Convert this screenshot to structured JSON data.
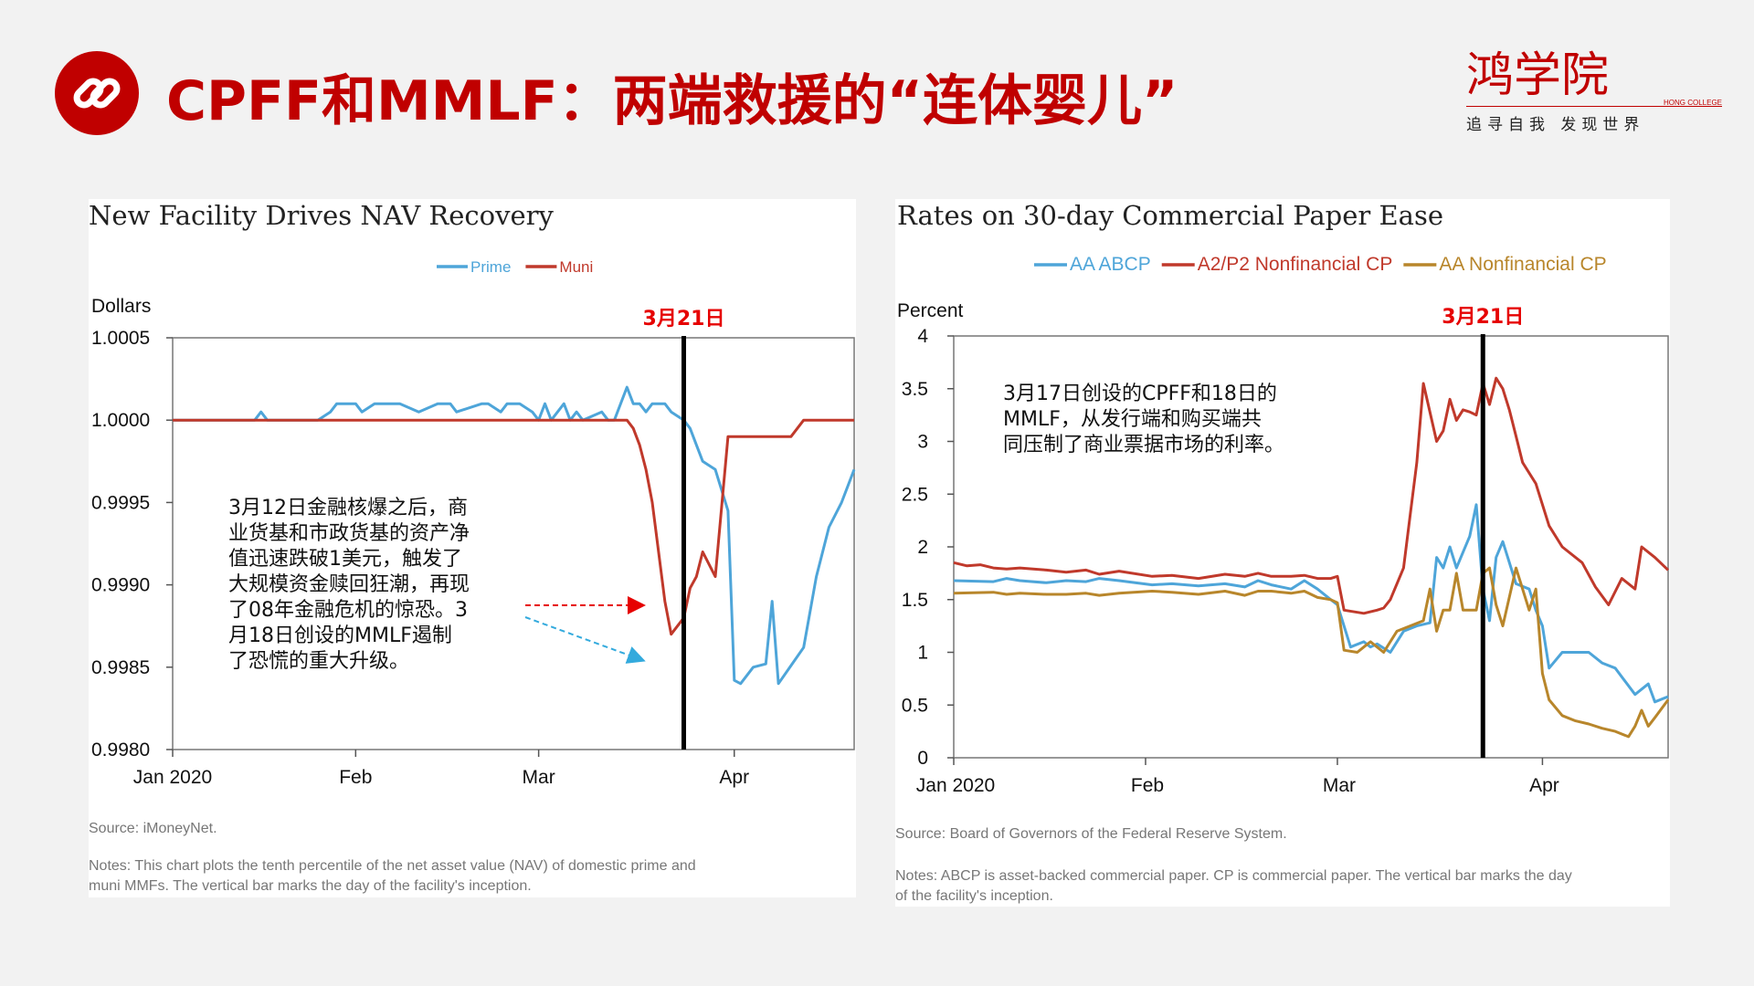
{
  "slide": {
    "title": "CPFF和MMLF：两端救援的“连体婴儿”",
    "icon": "link-icon",
    "accent": "#c00000"
  },
  "logo": {
    "brand_cn": "鸿学院",
    "brand_en": "HONG COLLEGE",
    "slogan": "追寻自我 发现世界"
  },
  "chart_data": [
    {
      "type": "line",
      "title": "New Facility Drives NAV Recovery",
      "ylabel": "Dollars",
      "ylim": [
        0.998,
        1.0005
      ],
      "yticks": [
        "1.0005",
        "1.0000",
        "0.9995",
        "0.9990",
        "0.9985",
        "0.9980"
      ],
      "xlim": [
        0,
        108
      ],
      "xticks": [
        {
          "label": "Jan 2020",
          "x": 0
        },
        {
          "label": "Feb",
          "x": 29
        },
        {
          "label": "Mar",
          "x": 58
        },
        {
          "label": "Apr",
          "x": 89
        }
      ],
      "event_line": {
        "x": 81,
        "label": "3月21日"
      },
      "legend": [
        {
          "name": "Prime",
          "color": "#4ea5d9"
        },
        {
          "name": "Muni",
          "color": "#c0392b"
        }
      ],
      "series": [
        {
          "name": "Prime",
          "color": "#4ea5d9",
          "x": [
            0,
            13,
            14,
            15,
            23,
            25,
            26,
            29,
            30,
            32,
            36,
            39,
            42,
            44,
            45,
            49,
            50,
            52,
            53,
            55,
            57,
            58,
            59,
            60,
            62,
            63,
            64,
            65,
            68,
            69,
            70,
            72,
            73,
            74,
            75,
            76,
            78,
            79,
            81,
            82,
            83,
            84,
            86,
            88,
            89,
            90,
            92,
            94,
            95,
            96,
            98,
            100,
            102,
            104,
            106,
            108
          ],
          "y": [
            1.0,
            1.0,
            1.00005,
            1.0,
            1.0,
            1.00005,
            1.0001,
            1.0001,
            1.00005,
            1.0001,
            1.0001,
            1.00005,
            1.0001,
            1.0001,
            1.00005,
            1.0001,
            1.0001,
            1.00005,
            1.0001,
            1.0001,
            1.00005,
            1.0,
            1.0001,
            1.0,
            1.0001,
            1.0,
            1.00005,
            1.0,
            1.00005,
            1.0,
            1.0,
            1.0002,
            1.0001,
            1.0001,
            1.00005,
            1.0001,
            1.0001,
            1.00005,
            1.0,
            0.99995,
            0.99985,
            0.99975,
            0.9997,
            0.99945,
            0.99842,
            0.9984,
            0.9985,
            0.99852,
            0.9989,
            0.9984,
            0.99851,
            0.99862,
            0.99905,
            0.99935,
            0.9995,
            0.9997
          ]
        },
        {
          "name": "Muni",
          "color": "#c0392b",
          "x": [
            0,
            70,
            72,
            73,
            74,
            75,
            76,
            77,
            78,
            79,
            80,
            81,
            82,
            83,
            84,
            86,
            88,
            90,
            92,
            94,
            96,
            98,
            100,
            102,
            104,
            106,
            108
          ],
          "y": [
            1.0,
            1.0,
            1.0,
            0.99995,
            0.99985,
            0.9997,
            0.9995,
            0.9992,
            0.9989,
            0.9987,
            0.99875,
            0.9988,
            0.99898,
            0.99905,
            0.9992,
            0.99905,
            0.9999,
            0.9999,
            0.9999,
            0.9999,
            0.9999,
            0.9999,
            1.0,
            1.0,
            1.0,
            1.0,
            1.0
          ]
        }
      ],
      "source": "Source:  iMoneyNet.",
      "notes": "Notes: This chart plots the tenth percentile of the net asset value (NAV) of domestic prime and muni MMFs. The vertical bar marks the day of the facility's inception."
    },
    {
      "type": "line",
      "title": "Rates on 30-day Commercial Paper Ease",
      "ylabel": "Percent",
      "ylim": [
        0,
        4
      ],
      "yticks": [
        "4",
        "3.5",
        "3",
        "2.5",
        "2",
        "1.5",
        "1",
        "0.5",
        "0"
      ],
      "xlim": [
        0,
        108
      ],
      "xticks": [
        {
          "label": "Jan 2020",
          "x": 0
        },
        {
          "label": "Feb",
          "x": 29
        },
        {
          "label": "Mar",
          "x": 58
        },
        {
          "label": "Apr",
          "x": 89
        }
      ],
      "event_line": {
        "x": 80,
        "label": "3月21日"
      },
      "legend": [
        {
          "name": "AA ABCP",
          "color": "#4ea5d9"
        },
        {
          "name": "A2/P2 Nonfinancial CP",
          "color": "#c0392b"
        },
        {
          "name": "AA Nonfinancial CP",
          "color": "#b8862b"
        }
      ],
      "series": [
        {
          "name": "AA ABCP",
          "color": "#4ea5d9",
          "x": [
            0,
            6,
            8,
            10,
            14,
            17,
            20,
            22,
            25,
            30,
            33,
            37,
            41,
            44,
            46,
            48,
            51,
            53,
            55,
            57,
            58,
            60,
            62,
            63,
            64,
            66,
            68,
            70,
            72,
            73,
            74,
            75,
            76,
            77,
            78,
            79,
            80,
            81,
            82,
            83,
            85,
            87,
            88,
            89,
            90,
            92,
            94,
            96,
            98,
            100,
            103,
            105,
            106,
            108
          ],
          "y": [
            1.68,
            1.67,
            1.7,
            1.68,
            1.66,
            1.68,
            1.67,
            1.7,
            1.68,
            1.64,
            1.65,
            1.63,
            1.65,
            1.62,
            1.68,
            1.64,
            1.6,
            1.68,
            1.6,
            1.5,
            1.45,
            1.05,
            1.1,
            1.05,
            1.08,
            1.0,
            1.2,
            1.25,
            1.28,
            1.9,
            1.8,
            2.0,
            1.8,
            1.95,
            2.1,
            2.4,
            1.6,
            1.3,
            1.9,
            2.05,
            1.65,
            1.6,
            1.4,
            1.25,
            0.85,
            1.0,
            1.0,
            1.0,
            0.9,
            0.85,
            0.6,
            0.7,
            0.53,
            0.58
          ]
        },
        {
          "name": "A2/P2 Nonfinancial CP",
          "color": "#c0392b",
          "x": [
            0,
            2,
            4,
            6,
            8,
            10,
            14,
            17,
            20,
            22,
            25,
            30,
            33,
            37,
            41,
            44,
            46,
            48,
            51,
            53,
            55,
            57,
            58,
            59,
            62,
            64,
            65,
            66,
            68,
            69,
            70,
            71,
            73,
            74,
            75,
            76,
            77,
            78,
            79,
            80,
            81,
            82,
            83,
            84,
            85,
            86,
            88,
            90,
            92,
            95,
            97,
            99,
            101,
            103,
            104,
            106,
            108
          ],
          "y": [
            1.85,
            1.82,
            1.83,
            1.8,
            1.79,
            1.8,
            1.78,
            1.76,
            1.78,
            1.74,
            1.77,
            1.72,
            1.73,
            1.7,
            1.74,
            1.72,
            1.75,
            1.72,
            1.72,
            1.73,
            1.7,
            1.7,
            1.72,
            1.4,
            1.37,
            1.4,
            1.42,
            1.5,
            1.8,
            2.3,
            2.8,
            3.55,
            3.0,
            3.1,
            3.4,
            3.2,
            3.3,
            3.28,
            3.25,
            3.55,
            3.35,
            3.6,
            3.5,
            3.3,
            3.05,
            2.8,
            2.6,
            2.2,
            2.0,
            1.85,
            1.62,
            1.45,
            1.7,
            1.6,
            2.0,
            1.9,
            1.78
          ]
        },
        {
          "name": "AA Nonfinancial CP",
          "color": "#b8862b",
          "x": [
            0,
            6,
            8,
            10,
            14,
            17,
            20,
            22,
            25,
            30,
            33,
            37,
            41,
            44,
            46,
            48,
            51,
            53,
            55,
            57,
            58,
            59,
            61,
            62,
            63,
            65,
            67,
            69,
            71,
            72,
            73,
            74,
            75,
            76,
            77,
            78,
            79,
            80,
            81,
            82,
            83,
            85,
            87,
            88,
            89,
            90,
            92,
            94,
            96,
            98,
            100,
            102,
            103,
            104,
            105,
            106,
            108
          ],
          "y": [
            1.56,
            1.57,
            1.55,
            1.56,
            1.55,
            1.55,
            1.56,
            1.54,
            1.56,
            1.58,
            1.57,
            1.55,
            1.58,
            1.54,
            1.58,
            1.58,
            1.56,
            1.58,
            1.52,
            1.5,
            1.47,
            1.02,
            1.0,
            1.05,
            1.1,
            1.0,
            1.2,
            1.25,
            1.3,
            1.6,
            1.2,
            1.4,
            1.4,
            1.75,
            1.4,
            1.4,
            1.4,
            1.75,
            1.8,
            1.45,
            1.25,
            1.8,
            1.4,
            1.6,
            0.8,
            0.55,
            0.4,
            0.35,
            0.32,
            0.28,
            0.25,
            0.2,
            0.3,
            0.45,
            0.3,
            0.38,
            0.55
          ]
        }
      ],
      "source": "Source:  Board of Governors of the Federal Reserve System.",
      "notes": "Notes: ABCP is asset-backed commercial paper. CP is commercial paper. The vertical bar marks the day of the facility's inception."
    }
  ],
  "annotations": {
    "left": "3月12日金融核爆之后，商\n业货基和市政货基的资产净\n值迅速跌破1美元，触发了\n大规模资金赎回狂潮，再现\n了08年金融危机的惊恐。3\n月18日创设的MMLF遏制\n了恐慌的重大升级。",
    "right": "3月17日创设的CPFF和18日的\nMMLF，从发行端和购买端共\n同压制了商业票据市场的利率。"
  }
}
